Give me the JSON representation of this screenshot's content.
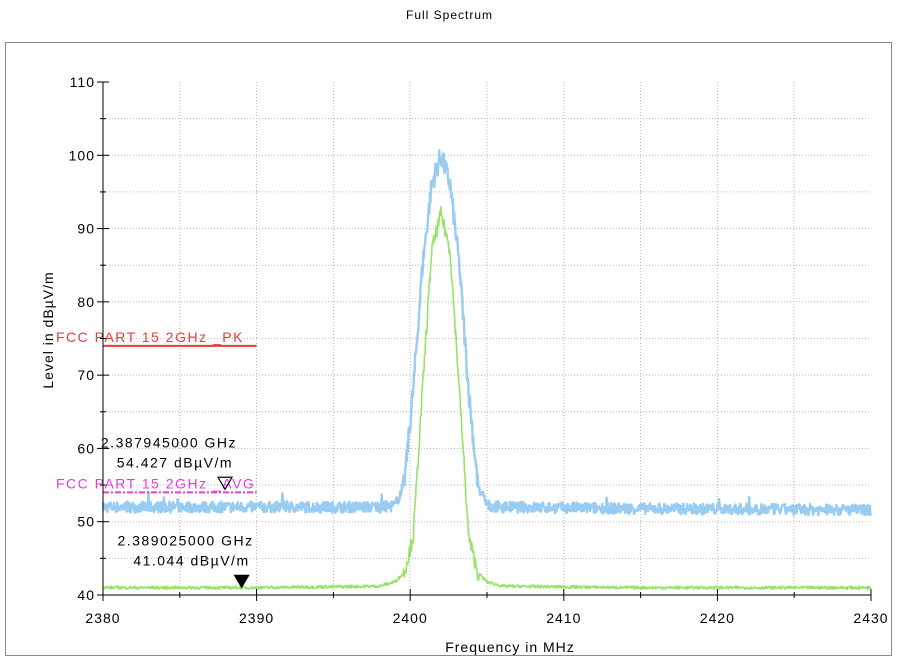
{
  "chart_data": {
    "type": "line",
    "title": "Full Spectrum",
    "xlabel": "Frequency in MHz",
    "ylabel": "Level in dBµV/m",
    "xlim": [
      2380,
      2430
    ],
    "ylim": [
      40,
      110
    ],
    "x_ticks": [
      "2380",
      "2390",
      "2400",
      "2410",
      "2420",
      "2430"
    ],
    "y_ticks": [
      "40",
      "50",
      "60",
      "70",
      "80",
      "90",
      "100",
      "110"
    ],
    "grid": true,
    "series": [
      {
        "color": "#99ccf2",
        "style": "peak trace",
        "points": [
          [
            2380,
            52.0
          ],
          [
            2390,
            52.0
          ],
          [
            2398,
            52.0
          ],
          [
            2399,
            52.2
          ],
          [
            2399.6,
            55
          ],
          [
            2400.2,
            68
          ],
          [
            2400.8,
            85
          ],
          [
            2401.4,
            96
          ],
          [
            2402.0,
            100
          ],
          [
            2402.6,
            96
          ],
          [
            2403.2,
            85
          ],
          [
            2403.8,
            68
          ],
          [
            2404.4,
            55
          ],
          [
            2405,
            52.2
          ],
          [
            2406,
            52.0
          ],
          [
            2415,
            51.8
          ],
          [
            2430,
            51.6
          ]
        ]
      },
      {
        "color": "#99e26a",
        "style": "average trace",
        "points": [
          [
            2380,
            41.0
          ],
          [
            2390,
            41.0
          ],
          [
            2398,
            41.2
          ],
          [
            2399,
            41.8
          ],
          [
            2399.6,
            43
          ],
          [
            2400.2,
            48
          ],
          [
            2400.8,
            68
          ],
          [
            2401.4,
            87
          ],
          [
            2402.0,
            92
          ],
          [
            2402.6,
            87
          ],
          [
            2403.2,
            68
          ],
          [
            2403.8,
            48
          ],
          [
            2404.4,
            43
          ],
          [
            2405,
            41.8
          ],
          [
            2406,
            41.2
          ],
          [
            2415,
            41.0
          ],
          [
            2430,
            41.0
          ]
        ]
      }
    ],
    "limit_lines": [
      {
        "name": "FCC PART 15 2GHz _PK",
        "y": 74,
        "x_range": [
          2380,
          2390
        ],
        "color": "#e83c3c",
        "dash": "solid"
      },
      {
        "name": "FCC PART 15 2GHz _AVG",
        "y": 54,
        "x_range": [
          2380,
          2390
        ],
        "color": "#e53cd8",
        "dash": "dashdot"
      }
    ],
    "markers": [
      {
        "freq": "2.387945000 GHz",
        "level": "54.427 dBµV/m",
        "x": 2387.945,
        "y": 54.427,
        "symbol": "open-triangle"
      },
      {
        "freq": "2.389025000 GHz",
        "level": "41.044 dBµV/m",
        "x": 2389.025,
        "y": 41.044,
        "symbol": "filled-triangle"
      }
    ]
  }
}
